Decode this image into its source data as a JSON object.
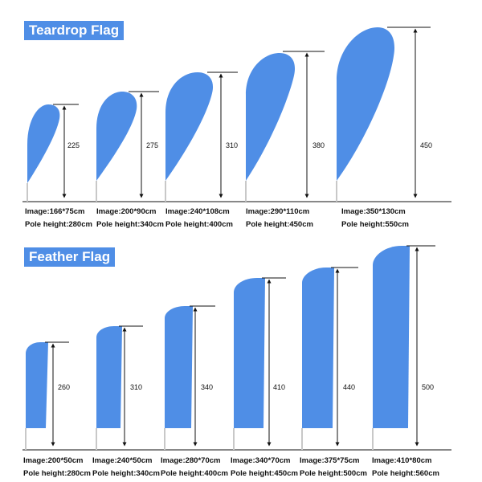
{
  "sections": [
    {
      "title": "Teardrop Flag",
      "flags": [
        {
          "image": "Image:166*75cm",
          "pole": "Pole height:280cm",
          "height_label": "225"
        },
        {
          "image": "Image:200*90cm",
          "pole": "Pole height:340cm",
          "height_label": "275"
        },
        {
          "image": "Image:240*108cm",
          "pole": "Pole height:400cm",
          "height_label": "310"
        },
        {
          "image": "Image:290*110cm",
          "pole": "Pole height:450cm",
          "height_label": "380"
        },
        {
          "image": "Image:350*130cm",
          "pole": "Pole height:550cm",
          "height_label": "450"
        }
      ]
    },
    {
      "title": "Feather Flag",
      "flags": [
        {
          "image": "Image:200*50cm",
          "pole": "Pole height:280cm",
          "height_label": "260"
        },
        {
          "image": "Image:240*50cm",
          "pole": "Pole height:340cm",
          "height_label": "310"
        },
        {
          "image": "Image:280*70cm",
          "pole": "Pole height:400cm",
          "height_label": "340"
        },
        {
          "image": "Image:340*70cm",
          "pole": "Pole height:450cm",
          "height_label": "410"
        },
        {
          "image": "Image:375*75cm",
          "pole": "Pole height:500cm",
          "height_label": "440"
        },
        {
          "image": "Image:410*80cm",
          "pole": "Pole height:560cm",
          "height_label": "500"
        }
      ]
    }
  ],
  "colors": {
    "flag": "#4f8ee6",
    "badge": "#4f8ee6",
    "pole": "#c8c8c8",
    "line": "#111111"
  }
}
